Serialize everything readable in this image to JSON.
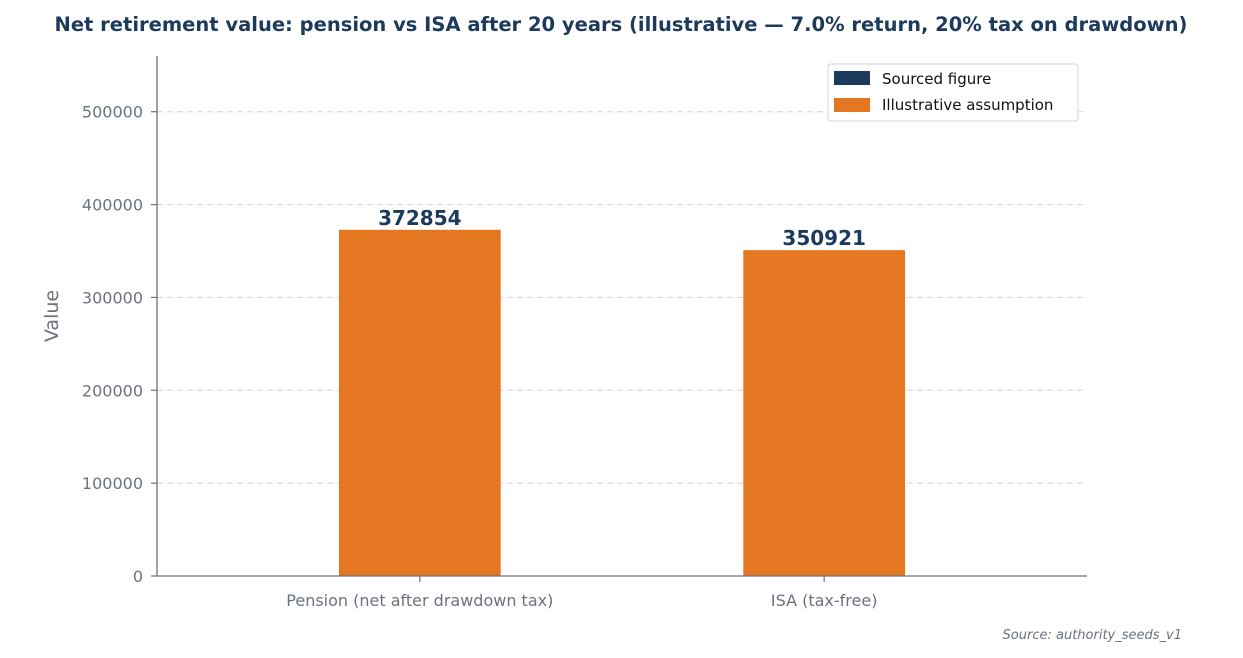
{
  "chart_data": {
    "type": "bar",
    "title": "Net retirement value: pension vs ISA after 20 years (illustrative — 7.0% return, 20% tax on drawdown)",
    "xlabel": "",
    "ylabel": "Value",
    "categories": [
      "Pension (net after drawdown tax)",
      "ISA (tax-free)"
    ],
    "values": [
      372854,
      350921
    ],
    "value_labels": [
      "372854",
      "350921"
    ],
    "bar_kinds": [
      "illustrative",
      "illustrative"
    ],
    "ylim": [
      0,
      560000
    ],
    "yticks": [
      0,
      100000,
      200000,
      300000,
      400000,
      500000
    ],
    "ytick_labels": [
      "0",
      "100000",
      "200000",
      "300000",
      "400000",
      "500000"
    ],
    "grid": true,
    "grid_axis": "y",
    "legend": {
      "placement": "top-right",
      "entries": [
        {
          "label": "Sourced figure",
          "color": "#1b3a5c"
        },
        {
          "label": "Illustrative assumption",
          "color": "#e67722"
        }
      ]
    },
    "colors": {
      "sourced": "#1b3a5c",
      "illustrative": "#e67722",
      "label": "#1b3a5c",
      "axis": "#6b7280",
      "grid": "#d1d5db"
    },
    "source_note": "Source: authority_seeds_v1"
  }
}
